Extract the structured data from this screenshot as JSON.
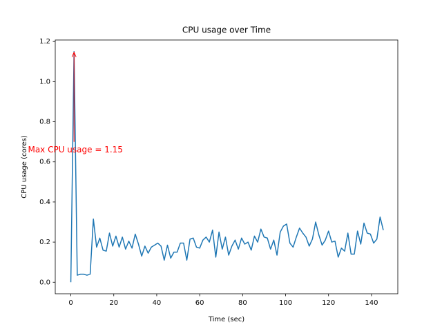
{
  "chart_data": {
    "type": "line",
    "title": "CPU usage over Time",
    "xlabel": "Time (sec)",
    "ylabel": "CPU usage (cores)",
    "x": [
      0,
      1.5,
      3,
      4.5,
      6,
      7.5,
      9,
      10.5,
      12,
      13.5,
      15,
      16.5,
      18,
      19.5,
      21,
      22.5,
      24,
      25.5,
      27,
      28.5,
      30,
      31.5,
      33,
      34.5,
      36,
      37.5,
      39,
      40.5,
      42,
      43.5,
      45,
      46.5,
      48,
      49.5,
      51,
      52.5,
      54,
      55.5,
      57,
      58.5,
      60,
      61.5,
      63,
      64.5,
      66,
      67.5,
      69,
      70.5,
      72,
      73.5,
      75,
      76.5,
      78,
      79.5,
      81,
      82.5,
      84,
      85.5,
      87,
      88.5,
      90,
      91.5,
      93,
      94.5,
      96,
      97.5,
      99,
      100.5,
      102,
      103.5,
      105,
      106.5,
      108,
      109.5,
      111,
      112.5,
      114,
      115.5,
      117,
      118.5,
      120,
      121.5,
      123,
      124.5,
      126,
      127.5,
      129,
      130.5,
      132,
      133.5,
      135,
      136.5,
      138,
      139.5,
      141,
      142.5,
      144,
      145.5
    ],
    "series": [
      {
        "name": "CPU usage",
        "color": "#1f77b4",
        "values": [
          0,
          1.15,
          0.035,
          0.04,
          0.04,
          0.035,
          0.04,
          0.315,
          0.175,
          0.22,
          0.16,
          0.155,
          0.245,
          0.18,
          0.23,
          0.175,
          0.225,
          0.165,
          0.205,
          0.17,
          0.24,
          0.19,
          0.13,
          0.18,
          0.145,
          0.175,
          0.185,
          0.195,
          0.18,
          0.11,
          0.185,
          0.12,
          0.15,
          0.15,
          0.195,
          0.195,
          0.11,
          0.215,
          0.22,
          0.175,
          0.17,
          0.21,
          0.225,
          0.2,
          0.26,
          0.125,
          0.25,
          0.165,
          0.225,
          0.135,
          0.18,
          0.21,
          0.165,
          0.22,
          0.19,
          0.2,
          0.16,
          0.23,
          0.2,
          0.265,
          0.225,
          0.22,
          0.165,
          0.21,
          0.135,
          0.25,
          0.28,
          0.29,
          0.195,
          0.175,
          0.225,
          0.27,
          0.245,
          0.225,
          0.18,
          0.215,
          0.3,
          0.235,
          0.185,
          0.21,
          0.255,
          0.2,
          0.205,
          0.125,
          0.17,
          0.155,
          0.245,
          0.14,
          0.14,
          0.255,
          0.19,
          0.295,
          0.245,
          0.24,
          0.195,
          0.215,
          0.325,
          0.26
        ]
      }
    ],
    "annotation": {
      "text": "Max CPU usage = 1.15",
      "x": 1.5,
      "y": 1.15,
      "color": "#ff0000"
    },
    "xlim": [
      -7.25,
      152.25
    ],
    "ylim": [
      -0.0575,
      1.2075
    ],
    "xticks": [
      0,
      20,
      40,
      60,
      80,
      100,
      120,
      140
    ],
    "yticks": [
      {
        "value": 0,
        "label": "0.0"
      },
      0.2,
      0.4,
      0.6,
      0.8,
      {
        "value": 1,
        "label": "1.0"
      },
      1.2
    ]
  }
}
